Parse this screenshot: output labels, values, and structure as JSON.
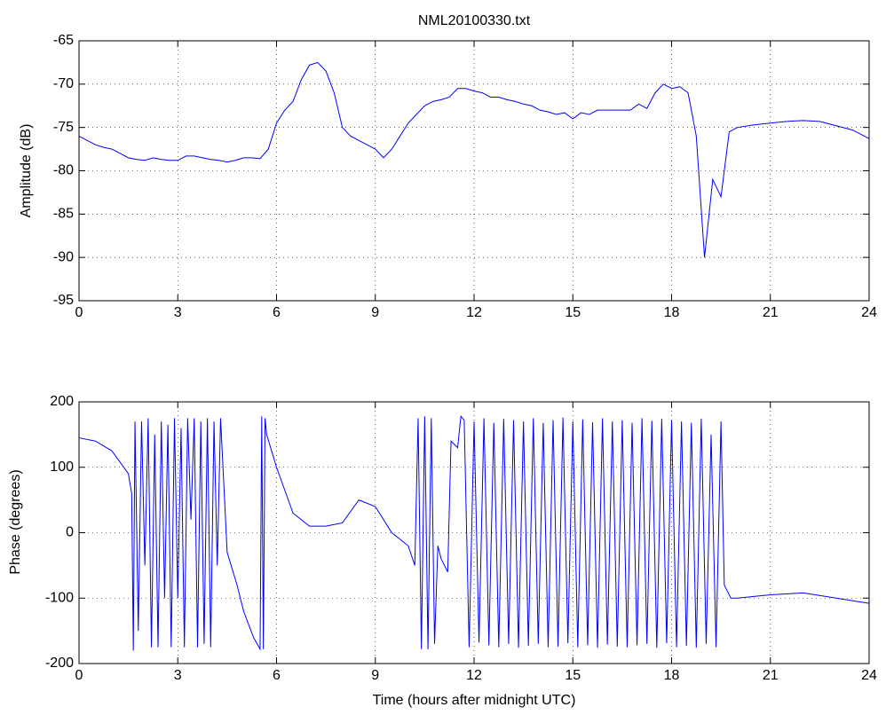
{
  "chart_data": [
    {
      "type": "line",
      "title": "NML20100330.txt",
      "ylabel": "Amplitude (dB)",
      "color": "#0000ff",
      "grid": true,
      "xlim": [
        0,
        24
      ],
      "xticks": [
        0,
        3,
        6,
        9,
        12,
        15,
        18,
        21,
        24
      ],
      "ylim": [
        -95,
        -65
      ],
      "yticks": [
        -95,
        -90,
        -85,
        -80,
        -75,
        -70,
        -65
      ],
      "x": [
        0,
        0.25,
        0.5,
        0.75,
        1,
        1.25,
        1.5,
        1.75,
        2,
        2.25,
        2.5,
        2.75,
        3,
        3.25,
        3.5,
        3.75,
        4,
        4.25,
        4.5,
        4.75,
        5,
        5.25,
        5.5,
        5.75,
        6,
        6.25,
        6.5,
        6.75,
        7,
        7.25,
        7.5,
        7.75,
        8,
        8.25,
        8.5,
        8.75,
        9,
        9.25,
        9.5,
        9.75,
        10,
        10.25,
        10.5,
        10.75,
        11,
        11.25,
        11.5,
        11.75,
        12,
        12.25,
        12.5,
        12.75,
        13,
        13.25,
        13.5,
        13.75,
        14,
        14.25,
        14.5,
        14.75,
        15,
        15.25,
        15.5,
        15.75,
        16,
        16.25,
        16.5,
        16.75,
        17,
        17.25,
        17.5,
        17.75,
        18,
        18.25,
        18.5,
        18.75,
        19,
        19.25,
        19.5,
        19.75,
        20,
        20.5,
        21,
        21.5,
        22,
        22.5,
        23,
        23.5,
        24
      ],
      "values": [
        -76,
        -76.5,
        -77,
        -77.3,
        -77.5,
        -78,
        -78.5,
        -78.7,
        -78.8,
        -78.5,
        -78.7,
        -78.8,
        -78.8,
        -78.3,
        -78.3,
        -78.5,
        -78.7,
        -78.8,
        -79,
        -78.8,
        -78.5,
        -78.5,
        -78.6,
        -77.5,
        -74.5,
        -73,
        -72,
        -69.5,
        -67.8,
        -67.5,
        -68.5,
        -71,
        -75,
        -76,
        -76.5,
        -77,
        -77.5,
        -78.5,
        -77.5,
        -76,
        -74.5,
        -73.5,
        -72.5,
        -72,
        -71.8,
        -71.5,
        -70.5,
        -70.5,
        -70.8,
        -71,
        -71.5,
        -71.5,
        -71.8,
        -72,
        -72.3,
        -72.5,
        -73,
        -73.2,
        -73.5,
        -73.3,
        -74,
        -73.3,
        -73.5,
        -73,
        -73,
        -73,
        -73,
        -73,
        -72.3,
        -72.8,
        -71,
        -70,
        -70.5,
        -70.3,
        -71,
        -76,
        -90,
        -81,
        -83,
        -75.5,
        -75,
        -74.7,
        -74.5,
        -74.3,
        -74.2,
        -74.3,
        -74.8,
        -75.3,
        -76.3
      ]
    },
    {
      "type": "line",
      "xlabel": "Time (hours after midnight UTC)",
      "ylabel": "Phase (degrees)",
      "color": "#0000ff",
      "grid": true,
      "xlim": [
        0,
        24
      ],
      "xticks": [
        0,
        3,
        6,
        9,
        12,
        15,
        18,
        21,
        24
      ],
      "ylim": [
        -200,
        200
      ],
      "yticks": [
        -200,
        -100,
        0,
        100,
        200
      ],
      "x": [
        0,
        0.5,
        1,
        1.5,
        1.6,
        1.65,
        1.7,
        1.8,
        1.9,
        2,
        2.1,
        2.2,
        2.3,
        2.4,
        2.5,
        2.6,
        2.7,
        2.8,
        2.9,
        3,
        3.1,
        3.2,
        3.3,
        3.4,
        3.5,
        3.6,
        3.7,
        3.8,
        3.9,
        4,
        4.1,
        4.2,
        4.3,
        4.5,
        4.8,
        5,
        5.3,
        5.5,
        5.55,
        5.6,
        5.65,
        5.7,
        6,
        6.5,
        7,
        7.5,
        8,
        8.5,
        9,
        9.5,
        10,
        10.2,
        10.3,
        10.4,
        10.5,
        10.6,
        10.7,
        10.8,
        10.9,
        11,
        11.2,
        11.3,
        11.5,
        11.6,
        11.7,
        11.85,
        12,
        12.15,
        12.3,
        12.45,
        12.6,
        12.75,
        12.9,
        13.05,
        13.2,
        13.35,
        13.5,
        13.65,
        13.8,
        13.95,
        14.1,
        14.25,
        14.4,
        14.55,
        14.7,
        14.85,
        15,
        15.15,
        15.3,
        15.45,
        15.6,
        15.75,
        15.9,
        16.05,
        16.2,
        16.35,
        16.5,
        16.65,
        16.8,
        16.95,
        17.1,
        17.25,
        17.4,
        17.55,
        17.7,
        17.85,
        18,
        18.15,
        18.3,
        18.45,
        18.6,
        18.75,
        18.9,
        19.05,
        19.2,
        19.35,
        19.5,
        19.6,
        19.8,
        20,
        21,
        22,
        23,
        24
      ],
      "values": [
        145,
        140,
        125,
        90,
        60,
        -180,
        170,
        -150,
        170,
        -50,
        175,
        -175,
        150,
        -175,
        170,
        -100,
        165,
        -175,
        175,
        -100,
        160,
        -175,
        175,
        20,
        175,
        -175,
        170,
        -170,
        175,
        -175,
        170,
        -50,
        175,
        -30,
        -80,
        -120,
        -160,
        -178,
        178,
        -178,
        175,
        150,
        100,
        30,
        10,
        10,
        15,
        50,
        40,
        0,
        -20,
        -50,
        175,
        -178,
        178,
        -178,
        175,
        -170,
        -20,
        -40,
        -60,
        140,
        130,
        178,
        172,
        -175,
        170,
        -168,
        175,
        -172,
        168,
        -175,
        174,
        -170,
        172,
        -176,
        170,
        -173,
        175,
        -170,
        168,
        -175,
        172,
        -174,
        176,
        -169,
        170,
        -175,
        173,
        -172,
        169,
        -176,
        175,
        -171,
        170,
        -174,
        172,
        -175,
        168,
        -172,
        175,
        -170,
        171,
        -176,
        174,
        -169,
        172,
        -175,
        170,
        -173,
        168,
        -176,
        174,
        -170,
        150,
        -175,
        170,
        -80,
        -100,
        -100,
        -95,
        -92,
        -100,
        -108
      ]
    }
  ]
}
